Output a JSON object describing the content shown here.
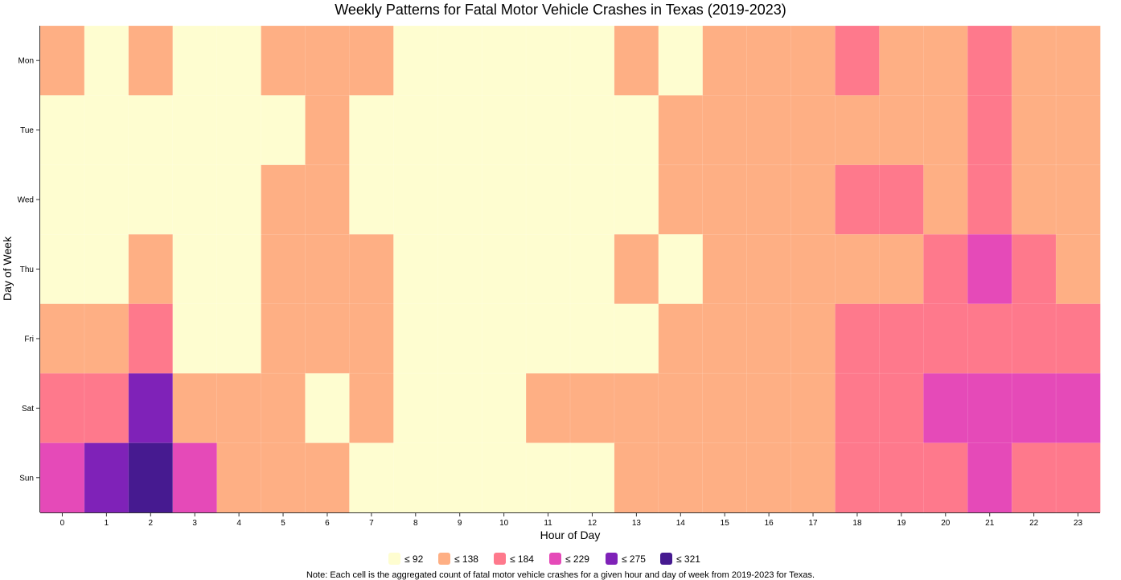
{
  "chart_data": {
    "type": "heatmap",
    "title": "Weekly Patterns for Fatal Motor Vehicle Crashes in Texas (2019-2023)",
    "xlabel": "Hour of Day",
    "ylabel": "Day of Week",
    "x_categories": [
      "0",
      "1",
      "2",
      "3",
      "4",
      "5",
      "6",
      "7",
      "8",
      "9",
      "10",
      "11",
      "12",
      "13",
      "14",
      "15",
      "16",
      "17",
      "18",
      "19",
      "20",
      "21",
      "22",
      "23"
    ],
    "y_categories": [
      "Mon",
      "Tue",
      "Wed",
      "Thu",
      "Fri",
      "Sat",
      "Sun"
    ],
    "legend": {
      "placement": "bottom",
      "bins": [
        {
          "label": "≤ 92",
          "max": 92,
          "color": "#fefdd0"
        },
        {
          "label": "≤ 138",
          "max": 138,
          "color": "#feaf84"
        },
        {
          "label": "≤ 184",
          "max": 184,
          "color": "#fe798c"
        },
        {
          "label": "≤ 229",
          "max": 229,
          "color": "#e54ab8"
        },
        {
          "label": "≤ 275",
          "max": 275,
          "color": "#7f22b8"
        },
        {
          "label": "≤ 321",
          "max": 321,
          "color": "#461a90"
        }
      ]
    },
    "bin_levels": [
      [
        1,
        0,
        1,
        0,
        0,
        1,
        1,
        1,
        0,
        0,
        0,
        0,
        0,
        1,
        0,
        1,
        1,
        1,
        2,
        1,
        1,
        2,
        1,
        1
      ],
      [
        0,
        0,
        0,
        0,
        0,
        0,
        1,
        0,
        0,
        0,
        0,
        0,
        0,
        0,
        1,
        1,
        1,
        1,
        1,
        1,
        1,
        2,
        1,
        1
      ],
      [
        0,
        0,
        0,
        0,
        0,
        1,
        1,
        0,
        0,
        0,
        0,
        0,
        0,
        0,
        1,
        1,
        1,
        1,
        2,
        2,
        1,
        2,
        1,
        1
      ],
      [
        0,
        0,
        1,
        0,
        0,
        1,
        1,
        1,
        0,
        0,
        0,
        0,
        0,
        1,
        0,
        1,
        1,
        1,
        1,
        1,
        2,
        3,
        2,
        1
      ],
      [
        1,
        1,
        2,
        0,
        0,
        1,
        1,
        1,
        0,
        0,
        0,
        0,
        0,
        0,
        1,
        1,
        1,
        1,
        2,
        2,
        2,
        2,
        2,
        2
      ],
      [
        2,
        2,
        4,
        1,
        1,
        1,
        0,
        1,
        0,
        0,
        0,
        1,
        1,
        1,
        1,
        1,
        1,
        1,
        2,
        2,
        3,
        3,
        3,
        3
      ],
      [
        3,
        4,
        5,
        3,
        1,
        1,
        1,
        0,
        0,
        0,
        0,
        0,
        0,
        1,
        1,
        1,
        1,
        1,
        2,
        2,
        2,
        3,
        2,
        2
      ]
    ],
    "note": "Note: Each cell is the aggregated count of fatal motor vehicle crashes for a given hour and day of week from 2019-2023 for Texas."
  }
}
